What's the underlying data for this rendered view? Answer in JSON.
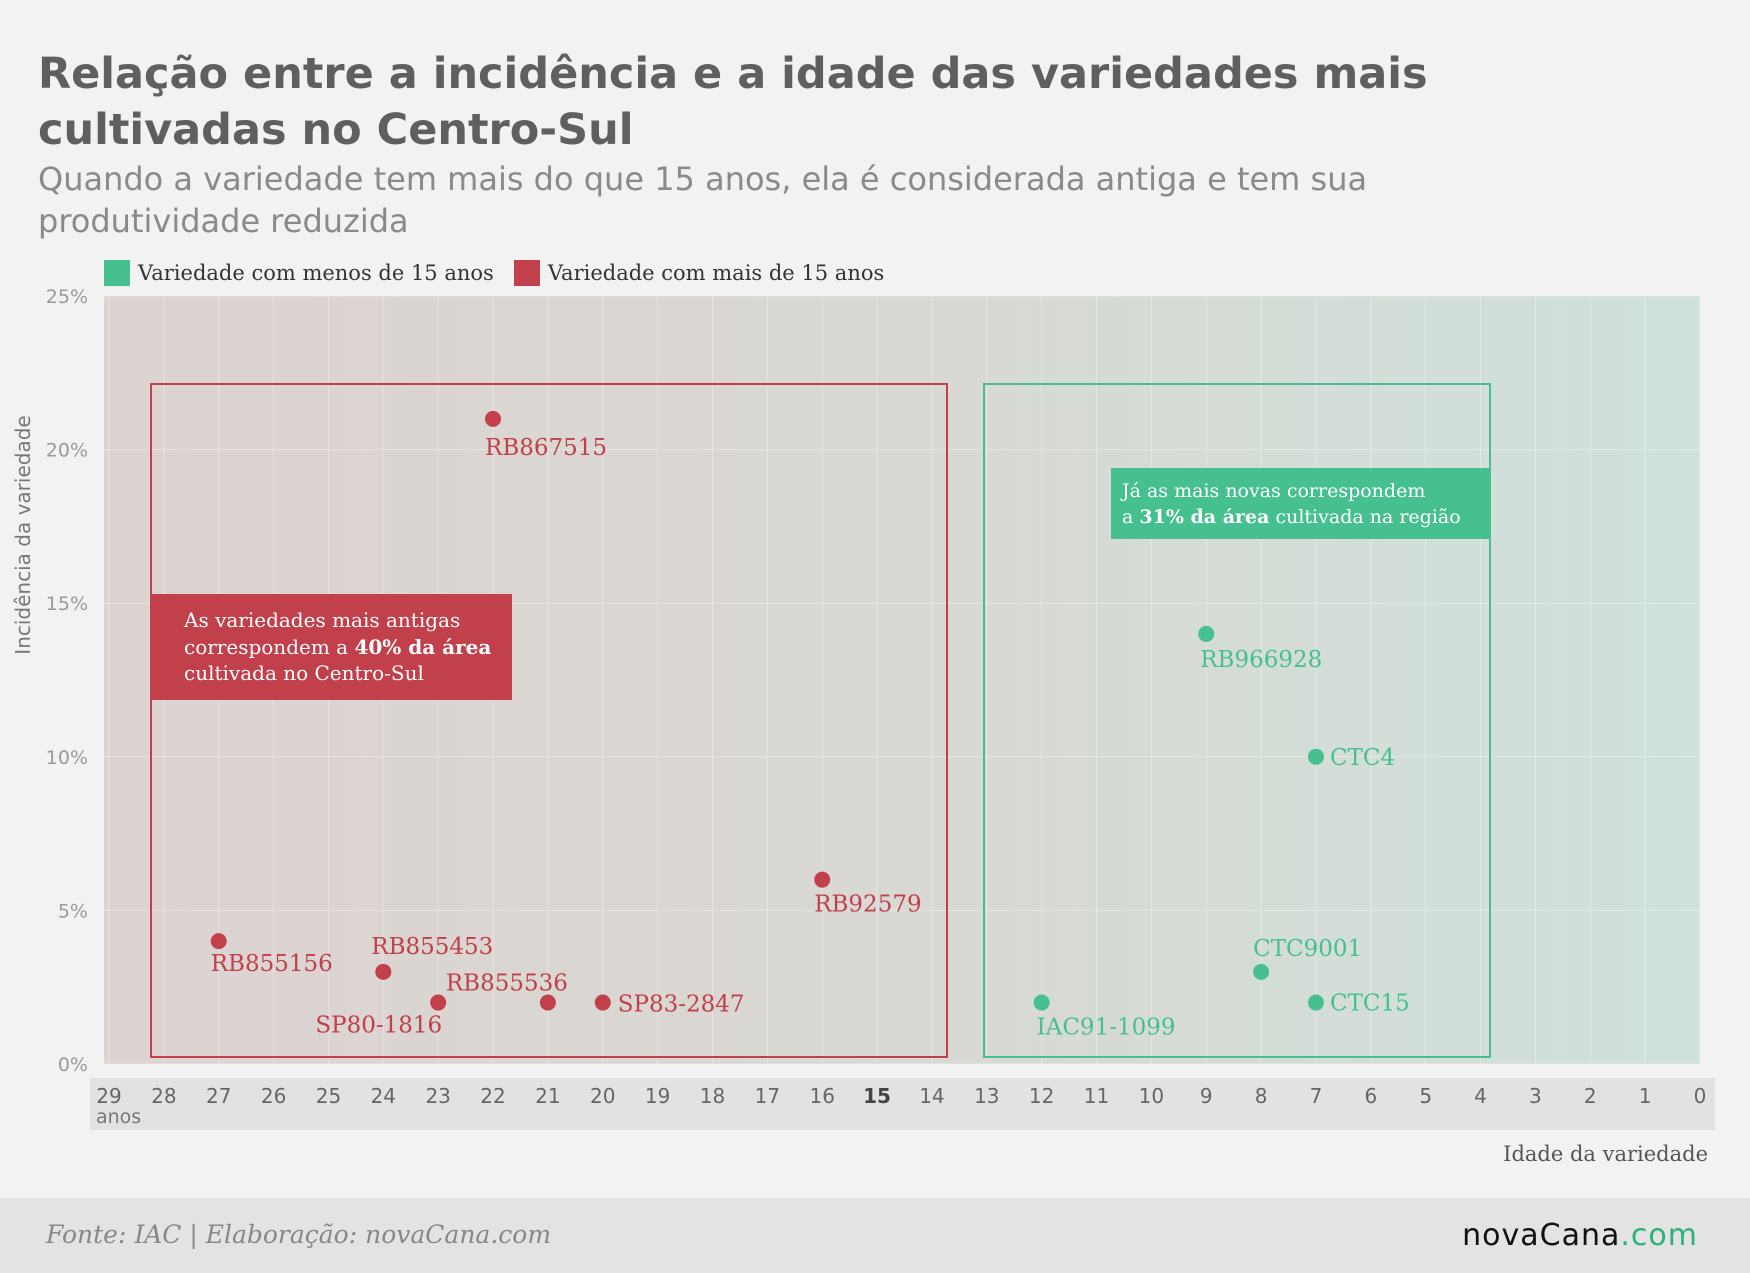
{
  "colors": {
    "new": "#47c08f",
    "old": "#c1404b",
    "axis_text": "#777777",
    "label_text": "#555555"
  },
  "legend": [
    {
      "label": "Variedade com menos de 15 anos",
      "color": "#47c08f"
    },
    {
      "label": "Variedade com mais de 15 anos",
      "color": "#c1404b"
    }
  ],
  "annotations": {
    "old": {
      "line1": "As variedades mais antigas",
      "line2_pre": "correspondem a ",
      "line2_bold": "40% da área",
      "line3": "cultivada no Centro-Sul"
    },
    "new": {
      "line1": "Já as mais novas correspondem",
      "line2_pre": "a ",
      "line2_bold": "31% da área",
      "line2_post": " cultivada na região"
    }
  },
  "footer": {
    "source": "Fonte: IAC | Elaboração: novaCana.com",
    "logo_main": "novaCana",
    "logo_suffix": ".com"
  },
  "chart_data": {
    "type": "scatter",
    "title": "Relação entre a incidência e a idade das variedades mais cultivadas no Centro-Sul",
    "subtitle": "Quando a variedade tem mais do que 15 anos, ela é considerada antiga e tem sua produtividade reduzida",
    "xlabel": "Idade da variedade",
    "ylabel": "Incidência da variedade",
    "x_unit_label": "anos",
    "xlim": [
      29,
      0
    ],
    "x_reversed": true,
    "ylim": [
      0,
      25
    ],
    "x_ticks": [
      29,
      28,
      27,
      26,
      25,
      24,
      23,
      22,
      21,
      20,
      19,
      18,
      17,
      16,
      15,
      14,
      13,
      12,
      11,
      10,
      9,
      8,
      7,
      6,
      5,
      4,
      3,
      2,
      1,
      0
    ],
    "y_ticks": [
      "0%",
      "5%",
      "10%",
      "15%",
      "20%",
      "25%"
    ],
    "y_tick_values": [
      0,
      5,
      10,
      15,
      20,
      25
    ],
    "grid": true,
    "legend_position": "top-left",
    "series": [
      {
        "name": "Variedade com mais de 15 anos",
        "color": "#c1404b",
        "points": [
          {
            "label": "RB867515",
            "x": 22,
            "y": 21
          },
          {
            "label": "RB92579",
            "x": 16,
            "y": 6
          },
          {
            "label": "RB855156",
            "x": 27,
            "y": 4
          },
          {
            "label": "RB855453",
            "x": 24,
            "y": 3
          },
          {
            "label": "SP80-1816",
            "x": 23,
            "y": 2
          },
          {
            "label": "RB855536",
            "x": 21,
            "y": 2
          },
          {
            "label": "SP83-2847",
            "x": 20,
            "y": 2
          }
        ]
      },
      {
        "name": "Variedade com menos de 15 anos",
        "color": "#47c08f",
        "points": [
          {
            "label": "RB966928",
            "x": 9,
            "y": 14
          },
          {
            "label": "CTC4",
            "x": 7,
            "y": 10
          },
          {
            "label": "CTC9001",
            "x": 8,
            "y": 3
          },
          {
            "label": "CTC15",
            "x": 7,
            "y": 2
          },
          {
            "label": "IAC91-1099",
            "x": 12,
            "y": 2
          }
        ]
      }
    ]
  }
}
